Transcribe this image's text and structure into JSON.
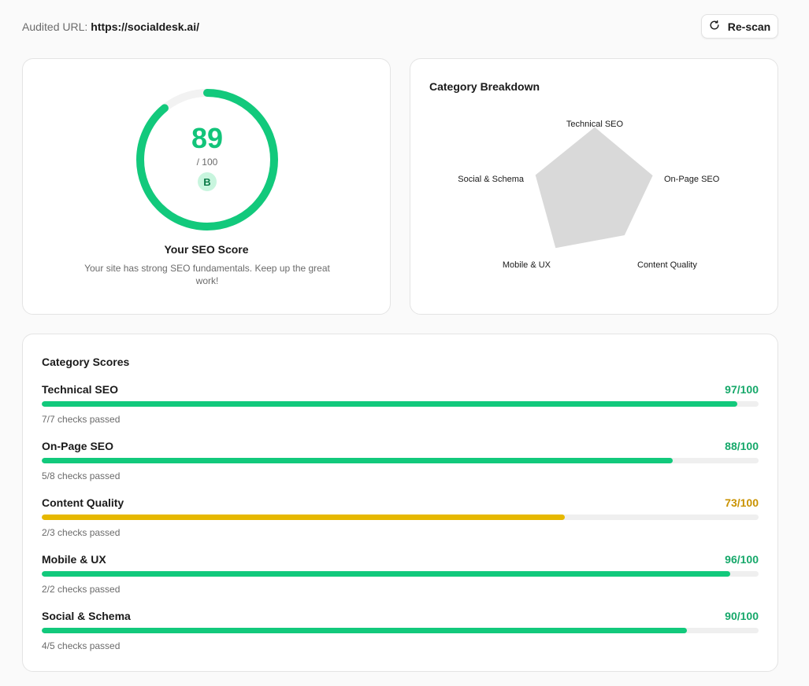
{
  "header": {
    "audited_label": "Audited URL:",
    "audited_url": "https://socialdesk.ai/",
    "rescan_label": "Re-scan"
  },
  "score": {
    "value": "89",
    "max": "/ 100",
    "grade": "B",
    "title": "Your SEO Score",
    "description": "Your site has strong SEO fundamentals. Keep up the great work!",
    "fraction": 0.89
  },
  "radar": {
    "title": "Category Breakdown",
    "axes": [
      "Technical SEO",
      "On-Page SEO",
      "Content Quality",
      "Mobile & UX",
      "Social & Schema"
    ],
    "values": [
      97,
      88,
      73,
      96,
      90
    ],
    "max": 100
  },
  "categories": {
    "title": "Category Scores",
    "items": [
      {
        "name": "Technical SEO",
        "score": "97/100",
        "value": 97,
        "checks": "7/7 checks passed",
        "status": "good"
      },
      {
        "name": "On-Page SEO",
        "score": "88/100",
        "value": 88,
        "checks": "5/8 checks passed",
        "status": "good"
      },
      {
        "name": "Content Quality",
        "score": "73/100",
        "value": 73,
        "checks": "2/3 checks passed",
        "status": "warn"
      },
      {
        "name": "Mobile & UX",
        "score": "96/100",
        "value": 96,
        "checks": "2/2 checks passed",
        "status": "good"
      },
      {
        "name": "Social & Schema",
        "score": "90/100",
        "value": 90,
        "checks": "4/5 checks passed",
        "status": "good"
      }
    ]
  },
  "colors": {
    "good": "#12c97c",
    "good_text": "#16a86a",
    "warn": "#e6b800",
    "warn_text": "#c99200",
    "radar_fill": "#d9d9d9",
    "ring_track": "#f2f2f2"
  },
  "icons": {
    "rescan": "refresh-icon"
  }
}
